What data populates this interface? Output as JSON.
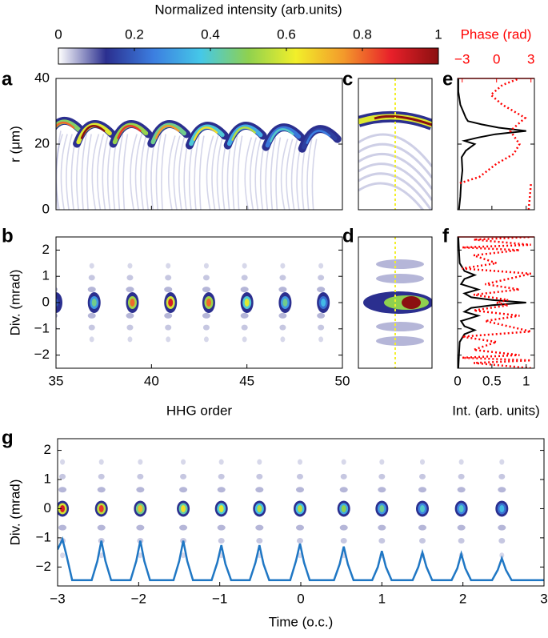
{
  "chart_data": [
    {
      "type": "colorbar",
      "title": "Normalized intensity (arb.units)",
      "xlim": [
        0,
        1
      ],
      "xticks": [
        0,
        0.2,
        0.4,
        0.6,
        0.8,
        1
      ],
      "colormap": [
        "#ffffff",
        "#2b2f8f",
        "#3c7ee0",
        "#45c8e8",
        "#8fd14f",
        "#f2ef2a",
        "#f39a2b",
        "#e8202a",
        "#8b1010"
      ]
    },
    {
      "type": "heatmap",
      "panel_label": "a",
      "ylabel": "r (μm)",
      "xlim": [
        35,
        50
      ],
      "xticks": [
        35,
        40,
        45,
        50
      ],
      "ylim": [
        0,
        40
      ],
      "yticks": [
        0,
        20,
        40
      ],
      "x": [
        35.5,
        37.1,
        39.0,
        41.0,
        43.0,
        45.0,
        47.0,
        48.9
      ],
      "y": [
        26,
        25,
        25,
        25,
        24.5,
        24.5,
        24,
        23.5
      ],
      "values": [
        0.8,
        1.0,
        0.85,
        0.75,
        0.65,
        0.55,
        0.4,
        0.25
      ]
    },
    {
      "type": "zoom",
      "panel_label": "c",
      "values": [
        1
      ]
    },
    {
      "type": "profile",
      "panel_label": "e",
      "xlim": [
        0,
        1.12
      ],
      "xticks": [
        0,
        0.5,
        1
      ],
      "ylim": [
        0,
        40
      ],
      "yticks": [
        0,
        20,
        40
      ],
      "x2label": "Phase (rad)",
      "x2lim": [
        -3.4,
        3.3
      ],
      "x2ticks": [
        {
          "value": -3,
          "label": "−3"
        },
        0,
        3
      ],
      "series": [
        {
          "color": "#000000",
          "y": [
            0,
            4,
            8,
            12,
            16,
            18,
            20,
            21,
            22,
            23,
            24,
            25,
            26,
            27,
            28,
            30,
            32,
            36,
            40
          ],
          "values": [
            0.02,
            0.04,
            0.05,
            0.07,
            0.06,
            0.12,
            0.25,
            0.1,
            0.3,
            0.55,
            1.0,
            0.6,
            0.35,
            0.15,
            0.12,
            0.08,
            0.04,
            0.01,
            0.01
          ]
        },
        {
          "color": "#ff0000",
          "axis": "x2",
          "y": [
            0,
            4,
            7.9,
            8,
            8.1,
            10,
            14,
            17,
            20,
            24,
            28,
            30,
            32,
            35,
            38,
            40
          ],
          "values": [
            2.8,
            2.9,
            3.0,
            null,
            -3.2,
            -1.5,
            0,
            1.5,
            2.0,
            1.2,
            2.5,
            1.5,
            0.5,
            -0.5,
            0.5,
            2.0
          ]
        }
      ]
    },
    {
      "type": "spots",
      "panel_label": "b",
      "ylabel": "Div. (mrad)",
      "xlabel": "HHG order",
      "xlim": [
        35,
        50
      ],
      "xticks": [
        35,
        40,
        45,
        50
      ],
      "ylim": [
        -2.5,
        2.5
      ],
      "yticks": [
        2,
        1,
        0,
        {
          "value": -1,
          "label": "−1"
        },
        {
          "value": -2,
          "label": "−2"
        }
      ],
      "x": [
        35,
        37,
        39,
        41,
        43,
        45,
        47,
        49
      ],
      "y": [
        0,
        0,
        0,
        0,
        0,
        0,
        0,
        0
      ],
      "values": [
        0.2,
        0.45,
        0.8,
        0.9,
        0.8,
        0.6,
        0.45,
        0.35
      ]
    },
    {
      "type": "zoom",
      "panel_label": "d",
      "values": [
        1
      ]
    },
    {
      "type": "profile",
      "panel_label": "f",
      "xlabel": "Int. (arb. units)",
      "xlim": [
        0,
        1.12
      ],
      "xticks": [
        0,
        0.5,
        1
      ],
      "ylim": [
        -2.5,
        2.5
      ],
      "yticks": [
        2,
        1,
        0,
        {
          "value": -1,
          "label": "−1"
        },
        {
          "value": -2,
          "label": "−2"
        }
      ],
      "x2lim": [
        -3.4,
        3.3
      ],
      "series": [
        {
          "color": "#000000",
          "y": [
            -2.5,
            -2,
            -1.5,
            -1.2,
            -1.05,
            -0.9,
            -0.7,
            -0.5,
            -0.35,
            -0.2,
            -0.1,
            0,
            0.1,
            0.2,
            0.35,
            0.5,
            0.7,
            0.9,
            1.05,
            1.2,
            1.5,
            2,
            2.5
          ],
          "values": [
            0.01,
            0.02,
            0.03,
            0.1,
            0.25,
            0.1,
            0.05,
            0.3,
            0.1,
            0.2,
            0.5,
            1.0,
            0.5,
            0.2,
            0.1,
            0.3,
            0.05,
            0.1,
            0.25,
            0.1,
            0.03,
            0.02,
            0.01
          ]
        },
        {
          "color": "#ff0000",
          "axis": "x2",
          "y": [
            -2.5,
            -2.3,
            -2.2,
            -2.1,
            -2.0,
            -1.8,
            -1.5,
            -1.3,
            -1.1,
            -0.9,
            -0.7,
            -0.5,
            -0.3,
            -0.1,
            0,
            0.1,
            0.3,
            0.5,
            0.7,
            0.9,
            1.1,
            1.3,
            1.5,
            1.8,
            2.0,
            2.1,
            2.2,
            2.4,
            2.5
          ],
          "values": [
            3,
            -2,
            3,
            -3,
            2,
            -2,
            0,
            -3,
            3,
            1,
            -1,
            2,
            -2,
            1,
            0,
            1,
            -2,
            2,
            -1,
            1,
            3,
            -3,
            0,
            -2,
            2,
            -3,
            3,
            -2,
            3
          ]
        }
      ]
    },
    {
      "type": "spots",
      "panel_label": "g",
      "ylabel": "Div. (mrad)",
      "xlabel": "Time (o.c.)",
      "xlim": [
        -3,
        3
      ],
      "xticks": [
        {
          "value": -3,
          "label": "−3"
        },
        {
          "value": -2,
          "label": "−2"
        },
        {
          "value": -1,
          "label": "−1"
        },
        0,
        1,
        2,
        3
      ],
      "ylim": [
        -2.65,
        2.4
      ],
      "yticks": [
        2,
        1,
        0,
        {
          "value": -1,
          "label": "−1"
        },
        {
          "value": -2,
          "label": "−2"
        }
      ],
      "x": [
        -2.94,
        -2.46,
        -1.98,
        -1.45,
        -0.98,
        -0.51,
        -0.01,
        0.53,
        1.0,
        1.5,
        1.98,
        2.48
      ],
      "y": [
        0,
        0,
        0,
        0,
        0,
        0,
        0,
        0,
        0,
        0,
        0,
        0
      ],
      "values": [
        0.9,
        0.85,
        0.7,
        0.65,
        0.6,
        0.55,
        0.55,
        0.5,
        0.45,
        0.4,
        0.4,
        0.35
      ],
      "series": [
        {
          "color": "#1f77c4",
          "x": [
            -3.0,
            -2.94,
            -2.89,
            -2.82,
            -2.58,
            -2.51,
            -2.46,
            -2.41,
            -2.34,
            -2.1,
            -2.03,
            -1.98,
            -1.93,
            -1.86,
            -1.57,
            -1.5,
            -1.45,
            -1.4,
            -1.33,
            -1.1,
            -1.03,
            -0.98,
            -0.93,
            -0.86,
            -0.63,
            -0.56,
            -0.51,
            -0.46,
            -0.39,
            -0.13,
            -0.06,
            -0.01,
            0.04,
            0.11,
            0.41,
            0.48,
            0.53,
            0.58,
            0.65,
            0.88,
            0.95,
            1.0,
            1.05,
            1.12,
            1.38,
            1.45,
            1.5,
            1.55,
            1.62,
            1.86,
            1.93,
            1.98,
            2.03,
            2.1,
            2.36,
            2.43,
            2.48,
            2.53,
            2.6,
            3.0
          ],
          "values": [
            -1.4,
            -1.05,
            -1.6,
            -2.45,
            -2.45,
            -1.8,
            -1.1,
            -1.8,
            -2.45,
            -2.45,
            -1.8,
            -1.1,
            -1.8,
            -2.45,
            -2.45,
            -1.8,
            -1.1,
            -1.8,
            -2.45,
            -2.45,
            -1.85,
            -1.25,
            -1.9,
            -2.45,
            -2.45,
            -1.85,
            -1.25,
            -1.9,
            -2.45,
            -2.45,
            -1.8,
            -1.2,
            -1.85,
            -2.45,
            -2.45,
            -1.9,
            -1.3,
            -1.9,
            -2.45,
            -2.45,
            -2.0,
            -1.45,
            -2.0,
            -2.45,
            -2.45,
            -2.0,
            -1.5,
            -2.0,
            -2.45,
            -2.45,
            -2.05,
            -1.55,
            -2.05,
            -2.45,
            -2.45,
            -2.1,
            -1.7,
            -2.1,
            -2.45,
            -2.45
          ]
        }
      ]
    }
  ]
}
